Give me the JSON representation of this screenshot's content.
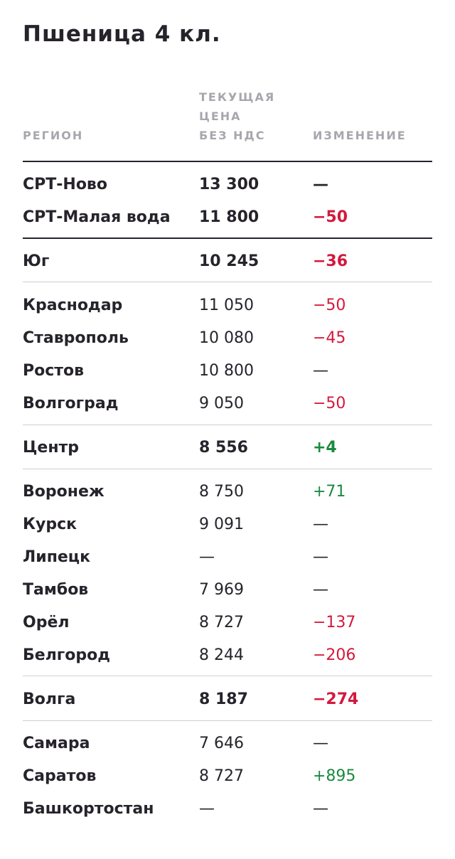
{
  "title": "Пшеница 4 кл.",
  "header": {
    "region": "РЕГИОН",
    "price_line1": "ТЕКУЩАЯ",
    "price_line2": "ЦЕНА",
    "price_line3": "БЕЗ НДС",
    "change": "ИЗМЕНЕНИЕ"
  },
  "colors": {
    "text": "#26232b",
    "muted": "#a8a6ad",
    "negative": "#d4183d",
    "positive": "#1a8a3e"
  },
  "rows": [
    {
      "region": "СРТ-Ново",
      "price": "13 300",
      "change": "—",
      "trend": "neutral",
      "bold": true
    },
    {
      "region": "СРТ-Малая вода",
      "price": "11 800",
      "change": "−50",
      "trend": "negative",
      "bold": true
    },
    {
      "region": "Юг",
      "price": "10 245",
      "change": "−36",
      "trend": "negative",
      "bold": true
    },
    {
      "region": "Краснодар",
      "price": "11 050",
      "change": "−50",
      "trend": "negative",
      "bold": false
    },
    {
      "region": "Ставрополь",
      "price": "10 080",
      "change": "−45",
      "trend": "negative",
      "bold": false
    },
    {
      "region": "Ростов",
      "price": "10 800",
      "change": "—",
      "trend": "neutral",
      "bold": false
    },
    {
      "region": "Волгоград",
      "price": "9 050",
      "change": "−50",
      "trend": "negative",
      "bold": false
    },
    {
      "region": "Центр",
      "price": "8 556",
      "change": "+4",
      "trend": "positive",
      "bold": true
    },
    {
      "region": "Воронеж",
      "price": "8 750",
      "change": "+71",
      "trend": "positive",
      "bold": false
    },
    {
      "region": "Курск",
      "price": "9 091",
      "change": "—",
      "trend": "neutral",
      "bold": false
    },
    {
      "region": "Липецк",
      "price": "—",
      "change": "—",
      "trend": "neutral",
      "bold": false
    },
    {
      "region": "Тамбов",
      "price": "7 969",
      "change": "—",
      "trend": "neutral",
      "bold": false
    },
    {
      "region": "Орёл",
      "price": "8 727",
      "change": "−137",
      "trend": "negative",
      "bold": false
    },
    {
      "region": "Белгород",
      "price": "8 244",
      "change": "−206",
      "trend": "negative",
      "bold": false
    },
    {
      "region": "Волга",
      "price": "8 187",
      "change": "−274",
      "trend": "negative",
      "bold": true
    },
    {
      "region": "Самара",
      "price": "7 646",
      "change": "—",
      "trend": "neutral",
      "bold": false
    },
    {
      "region": "Саратов",
      "price": "8 727",
      "change": "+895",
      "trend": "positive",
      "bold": false
    },
    {
      "region": "Башкортостан",
      "price": "—",
      "change": "—",
      "trend": "neutral",
      "bold": false
    }
  ]
}
